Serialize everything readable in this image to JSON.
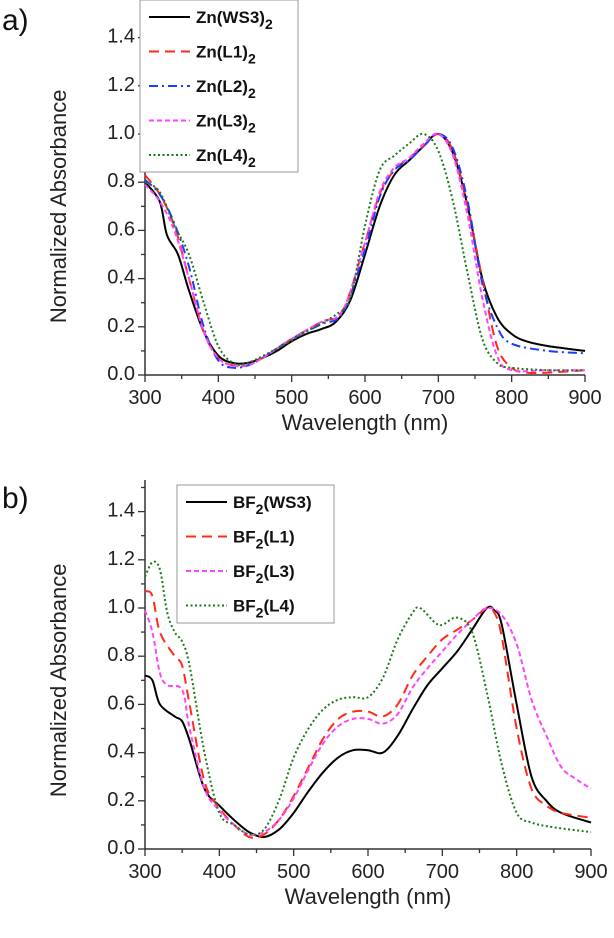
{
  "chart_data": [
    {
      "panel_label": "a)",
      "type": "line",
      "xlabel": "Wavelength (nm)",
      "ylabel": "Normalized Absorbance",
      "xlim": [
        300,
        900
      ],
      "ylim": [
        0.0,
        1.5
      ],
      "xticks": [
        "300",
        "400",
        "500",
        "600",
        "700",
        "800",
        "900"
      ],
      "yticks": [
        "0.0",
        "0.2",
        "0.4",
        "0.6",
        "0.8",
        "1.0",
        "1.2",
        "1.4"
      ],
      "grid": false,
      "legend_position": "top-left",
      "series": [
        {
          "name": "Zn(WS3)",
          "sub": "2",
          "color": "#000000",
          "style": "solid",
          "x": [
            300,
            320,
            330,
            345,
            360,
            380,
            400,
            420,
            440,
            460,
            480,
            500,
            520,
            540,
            560,
            580,
            600,
            620,
            640,
            660,
            680,
            700,
            720,
            740,
            760,
            780,
            800,
            820,
            850,
            900
          ],
          "y": [
            0.8,
            0.72,
            0.58,
            0.5,
            0.35,
            0.18,
            0.08,
            0.05,
            0.05,
            0.07,
            0.1,
            0.14,
            0.17,
            0.19,
            0.22,
            0.31,
            0.5,
            0.7,
            0.83,
            0.89,
            0.95,
            1.0,
            0.92,
            0.7,
            0.4,
            0.24,
            0.17,
            0.14,
            0.12,
            0.1
          ]
        },
        {
          "name": "Zn(L1)",
          "sub": "2",
          "color": "#ff2a1a",
          "style": "dashed",
          "x": [
            300,
            320,
            340,
            360,
            380,
            400,
            420,
            440,
            460,
            500,
            540,
            570,
            600,
            620,
            640,
            660,
            680,
            700,
            720,
            740,
            760,
            780,
            800,
            820,
            850,
            900
          ],
          "y": [
            0.83,
            0.75,
            0.62,
            0.4,
            0.18,
            0.07,
            0.04,
            0.04,
            0.07,
            0.15,
            0.22,
            0.27,
            0.55,
            0.75,
            0.85,
            0.9,
            0.95,
            1.0,
            0.93,
            0.7,
            0.4,
            0.12,
            0.03,
            0.01,
            0.01,
            0.02
          ]
        },
        {
          "name": "Zn(L2)",
          "sub": "2",
          "color": "#1a3cff",
          "style": "dashdot",
          "x": [
            300,
            320,
            340,
            360,
            380,
            400,
            420,
            440,
            460,
            500,
            540,
            570,
            600,
            620,
            640,
            660,
            680,
            700,
            720,
            740,
            760,
            780,
            800,
            850,
            900
          ],
          "y": [
            0.81,
            0.75,
            0.63,
            0.45,
            0.2,
            0.06,
            0.03,
            0.04,
            0.07,
            0.15,
            0.21,
            0.26,
            0.52,
            0.74,
            0.85,
            0.89,
            0.95,
            1.0,
            0.94,
            0.72,
            0.38,
            0.2,
            0.13,
            0.1,
            0.09
          ]
        },
        {
          "name": "Zn(L3)",
          "sub": "2",
          "color": "#ff44ff",
          "style": "shortdash",
          "x": [
            300,
            320,
            340,
            360,
            380,
            400,
            420,
            440,
            460,
            500,
            540,
            570,
            600,
            620,
            640,
            660,
            680,
            700,
            720,
            740,
            760,
            780,
            800,
            850,
            900
          ],
          "y": [
            0.79,
            0.72,
            0.6,
            0.4,
            0.18,
            0.07,
            0.04,
            0.04,
            0.07,
            0.15,
            0.22,
            0.27,
            0.55,
            0.76,
            0.86,
            0.9,
            0.96,
            1.0,
            0.91,
            0.66,
            0.32,
            0.08,
            0.02,
            0.02,
            0.02
          ]
        },
        {
          "name": "Zn(L4)",
          "sub": "2",
          "color": "#1a7a1a",
          "style": "dotted",
          "x": [
            300,
            320,
            340,
            360,
            380,
            400,
            420,
            440,
            480,
            520,
            560,
            580,
            600,
            620,
            640,
            660,
            680,
            700,
            720,
            740,
            760,
            780,
            800,
            850,
            900
          ],
          "y": [
            0.8,
            0.76,
            0.62,
            0.5,
            0.3,
            0.12,
            0.05,
            0.05,
            0.11,
            0.18,
            0.25,
            0.32,
            0.62,
            0.85,
            0.91,
            0.96,
            1.0,
            0.93,
            0.72,
            0.42,
            0.15,
            0.05,
            0.03,
            0.02,
            0.02
          ]
        }
      ]
    },
    {
      "panel_label": "b)",
      "type": "line",
      "xlabel": "Wavelength (nm)",
      "ylabel": "Normalized Absorbance",
      "xlim": [
        300,
        900
      ],
      "ylim": [
        0.0,
        1.5
      ],
      "xticks": [
        "300",
        "400",
        "500",
        "600",
        "700",
        "800",
        "900"
      ],
      "yticks": [
        "0.0",
        "0.2",
        "0.4",
        "0.6",
        "0.8",
        "1.0",
        "1.2",
        "1.4"
      ],
      "grid": false,
      "legend_position": "top-left",
      "series": [
        {
          "name": "BF",
          "sub": "2",
          "suffix": "(WS3)",
          "color": "#000000",
          "style": "solid",
          "x": [
            300,
            310,
            320,
            340,
            350,
            360,
            380,
            400,
            420,
            440,
            460,
            480,
            500,
            520,
            540,
            560,
            580,
            600,
            620,
            640,
            660,
            680,
            700,
            720,
            740,
            760,
            770,
            780,
            800,
            820,
            840,
            860,
            900
          ],
          "y": [
            0.72,
            0.7,
            0.6,
            0.55,
            0.53,
            0.45,
            0.25,
            0.18,
            0.12,
            0.07,
            0.05,
            0.08,
            0.15,
            0.24,
            0.32,
            0.38,
            0.41,
            0.41,
            0.4,
            0.47,
            0.58,
            0.68,
            0.75,
            0.82,
            0.91,
            1.0,
            0.99,
            0.93,
            0.6,
            0.3,
            0.2,
            0.15,
            0.11
          ]
        },
        {
          "name": "BF",
          "sub": "2",
          "suffix": "(L1)",
          "color": "#ff2a1a",
          "style": "dashed",
          "x": [
            300,
            310,
            320,
            340,
            350,
            360,
            380,
            400,
            420,
            440,
            460,
            480,
            500,
            520,
            540,
            560,
            580,
            600,
            620,
            640,
            660,
            680,
            700,
            720,
            740,
            760,
            770,
            780,
            800,
            820,
            840,
            860,
            900
          ],
          "y": [
            1.07,
            1.05,
            0.9,
            0.8,
            0.76,
            0.6,
            0.28,
            0.17,
            0.1,
            0.05,
            0.06,
            0.12,
            0.22,
            0.34,
            0.46,
            0.54,
            0.57,
            0.57,
            0.55,
            0.6,
            0.72,
            0.8,
            0.87,
            0.91,
            0.95,
            1.0,
            0.98,
            0.88,
            0.5,
            0.25,
            0.18,
            0.15,
            0.13
          ]
        },
        {
          "name": "BF",
          "sub": "2",
          "suffix": "(L3)",
          "color": "#ff44ff",
          "style": "shortdash",
          "x": [
            300,
            310,
            320,
            330,
            350,
            360,
            380,
            400,
            420,
            440,
            460,
            480,
            500,
            520,
            540,
            560,
            580,
            600,
            620,
            640,
            660,
            680,
            700,
            720,
            740,
            760,
            780,
            800,
            820,
            840,
            860,
            880,
            900
          ],
          "y": [
            0.99,
            0.9,
            0.73,
            0.68,
            0.66,
            0.5,
            0.25,
            0.16,
            0.1,
            0.06,
            0.07,
            0.12,
            0.21,
            0.33,
            0.44,
            0.51,
            0.54,
            0.54,
            0.52,
            0.56,
            0.67,
            0.75,
            0.82,
            0.89,
            0.95,
            1.0,
            0.97,
            0.85,
            0.62,
            0.47,
            0.34,
            0.29,
            0.25
          ]
        },
        {
          "name": "BF",
          "sub": "2",
          "suffix": "(L4)",
          "color": "#1a7a1a",
          "style": "dotted",
          "x": [
            300,
            310,
            320,
            330,
            340,
            350,
            360,
            380,
            400,
            420,
            440,
            460,
            480,
            500,
            520,
            540,
            560,
            580,
            600,
            620,
            640,
            660,
            670,
            690,
            700,
            720,
            740,
            760,
            780,
            800,
            820,
            850,
            900
          ],
          "y": [
            1.13,
            1.19,
            1.16,
            0.98,
            0.9,
            0.86,
            0.76,
            0.4,
            0.15,
            0.1,
            0.06,
            0.08,
            0.2,
            0.38,
            0.5,
            0.58,
            0.62,
            0.63,
            0.63,
            0.71,
            0.87,
            0.98,
            1.0,
            0.94,
            0.93,
            0.96,
            0.9,
            0.65,
            0.35,
            0.15,
            0.11,
            0.09,
            0.07
          ]
        }
      ]
    }
  ]
}
